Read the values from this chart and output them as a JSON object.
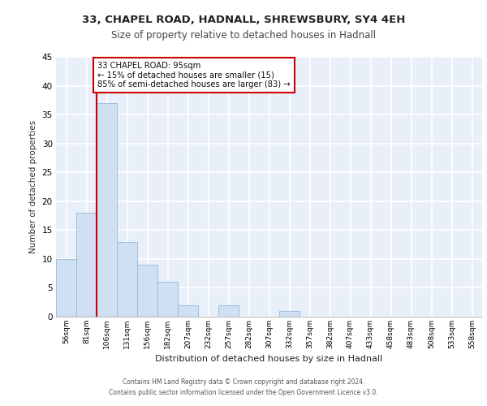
{
  "title_line1": "33, CHAPEL ROAD, HADNALL, SHREWSBURY, SY4 4EH",
  "title_line2": "Size of property relative to detached houses in Hadnall",
  "xlabel": "Distribution of detached houses by size in Hadnall",
  "ylabel": "Number of detached properties",
  "bin_labels": [
    "56sqm",
    "81sqm",
    "106sqm",
    "131sqm",
    "156sqm",
    "182sqm",
    "207sqm",
    "232sqm",
    "257sqm",
    "282sqm",
    "307sqm",
    "332sqm",
    "357sqm",
    "382sqm",
    "407sqm",
    "433sqm",
    "458sqm",
    "483sqm",
    "508sqm",
    "533sqm",
    "558sqm"
  ],
  "bar_values": [
    10,
    18,
    37,
    13,
    9,
    6,
    2,
    0,
    2,
    0,
    0,
    1,
    0,
    0,
    0,
    0,
    0,
    0,
    0,
    0,
    0
  ],
  "bar_color": "#cfe0f3",
  "bar_edge_color": "#92b8db",
  "background_color": "#e8eff8",
  "grid_color": "#ffffff",
  "vline_color": "#cc0000",
  "annotation_text": "33 CHAPEL ROAD: 95sqm\n← 15% of detached houses are smaller (15)\n85% of semi-detached houses are larger (83) →",
  "annotation_color": "#cc0000",
  "ylim": [
    0,
    45
  ],
  "yticks": [
    0,
    5,
    10,
    15,
    20,
    25,
    30,
    35,
    40,
    45
  ],
  "footer_line1": "Contains HM Land Registry data © Crown copyright and database right 2024.",
  "footer_line2": "Contains public sector information licensed under the Open Government Licence v3.0."
}
